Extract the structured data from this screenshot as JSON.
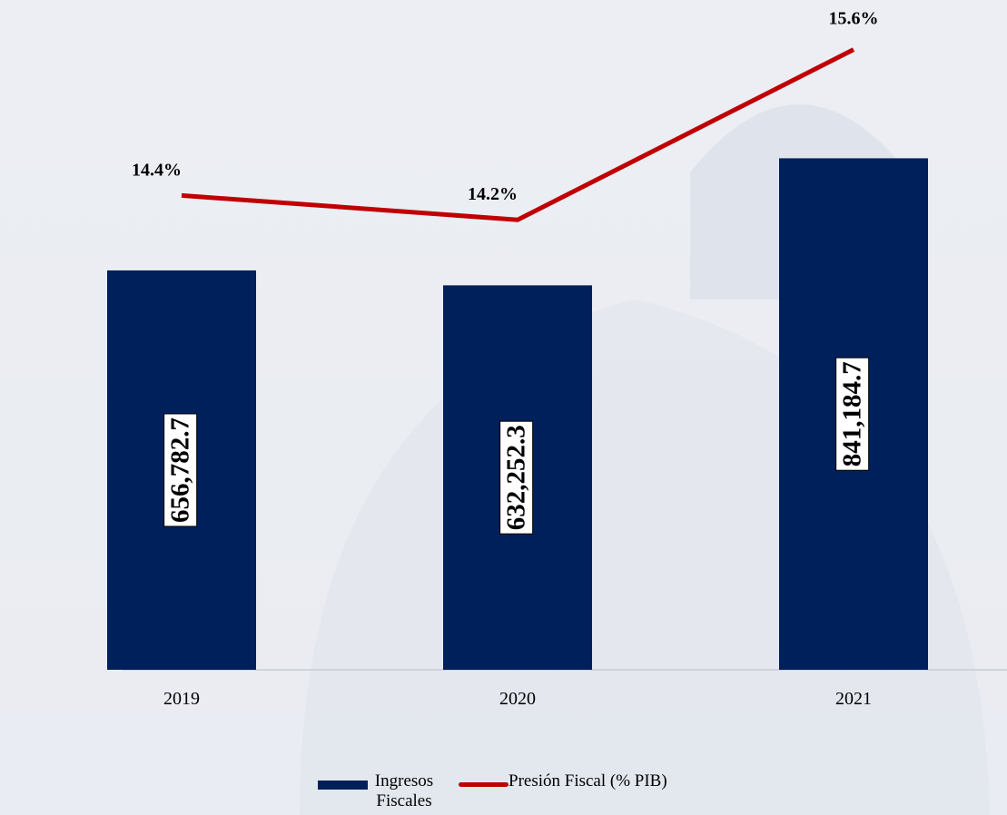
{
  "chart_data": {
    "type": "bar_line",
    "categories": [
      "2019",
      "2020",
      "2021"
    ],
    "series": [
      {
        "name": "Ingresos Fiscales",
        "type": "bar",
        "color": "#00205b",
        "values": [
          656782.7,
          632252.3,
          841184.7
        ],
        "value_labels": [
          "656,782.7",
          "632,252.3",
          "841,184.7"
        ]
      },
      {
        "name": "Presión Fiscal (% PIB)",
        "type": "line",
        "axis": "y2",
        "color": "#c00000",
        "values": [
          14.4,
          14.2,
          15.6
        ],
        "value_labels": [
          "14.4%",
          "14.2%",
          "15.6%"
        ]
      }
    ],
    "ylim": [
      0,
      1000000
    ],
    "y2lim": [
      10.5,
      15.5
    ],
    "grid": false,
    "legend": "bottom"
  }
}
